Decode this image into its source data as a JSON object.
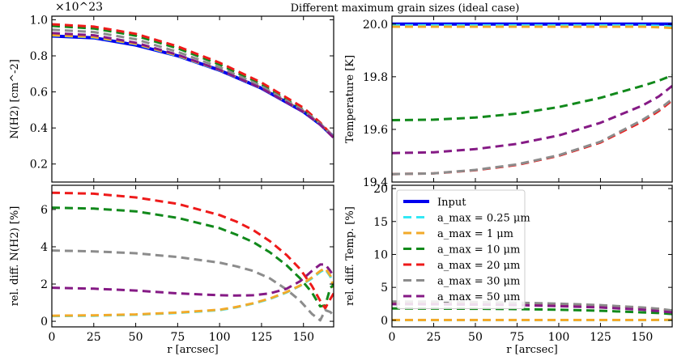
{
  "figure_title": "Different maximum grain sizes (ideal case)",
  "colors": {
    "Input": "#0000ee",
    "a025": "#33e8f5",
    "a1": "#f2aa2a",
    "a10": "#11891b",
    "a20": "#ee1a1a",
    "a30": "#8c8c8c",
    "a50": "#851a85"
  },
  "legend": {
    "placement": "upper-left",
    "entries": [
      {
        "key": "Input",
        "label": "Input"
      },
      {
        "key": "a025",
        "label": "a_max = 0.25 μm"
      },
      {
        "key": "a1",
        "label": "a_max = 1 μm"
      },
      {
        "key": "a10",
        "label": "a_max = 10 μm"
      },
      {
        "key": "a20",
        "label": "a_max = 20 μm"
      },
      {
        "key": "a30",
        "label": "a_max = 30 μm"
      },
      {
        "key": "a50",
        "label": "a_max = 50 μm"
      }
    ]
  },
  "chart_data": [
    {
      "id": "nh2",
      "type": "line",
      "xlabel": "",
      "ylabel": "N(H2) [cm^-2]",
      "scale_note": "×10^23",
      "xlim": [
        0,
        168
      ],
      "ylim": [
        0.1,
        1.02
      ],
      "xticks": [
        0,
        25,
        50,
        75,
        100,
        125,
        150
      ],
      "yticks": [
        0.2,
        0.4,
        0.6,
        0.8,
        1.0
      ],
      "ytick_labels": [
        "0.2",
        "0.4",
        "0.6",
        "0.8",
        "1.0"
      ],
      "x": [
        0,
        25,
        50,
        75,
        100,
        125,
        150,
        160,
        168
      ],
      "series": [
        {
          "key": "Input",
          "style": "solid",
          "values": [
            0.91,
            0.9,
            0.86,
            0.8,
            0.72,
            0.62,
            0.49,
            0.42,
            0.35
          ]
        },
        {
          "key": "a025",
          "style": "dashed",
          "values": [
            0.913,
            0.903,
            0.865,
            0.8,
            0.72,
            0.62,
            0.49,
            0.42,
            0.35
          ]
        },
        {
          "key": "a1",
          "style": "dashed",
          "values": [
            0.915,
            0.905,
            0.867,
            0.802,
            0.722,
            0.622,
            0.492,
            0.422,
            0.35
          ]
        },
        {
          "key": "a10",
          "style": "dashed",
          "values": [
            0.966,
            0.952,
            0.912,
            0.842,
            0.752,
            0.642,
            0.502,
            0.425,
            0.35
          ]
        },
        {
          "key": "a20",
          "style": "dashed",
          "values": [
            0.975,
            0.962,
            0.922,
            0.852,
            0.762,
            0.652,
            0.512,
            0.43,
            0.35
          ]
        },
        {
          "key": "a30",
          "style": "dashed",
          "values": [
            0.945,
            0.932,
            0.892,
            0.822,
            0.737,
            0.632,
            0.497,
            0.423,
            0.35
          ]
        },
        {
          "key": "a50",
          "style": "dashed",
          "values": [
            0.926,
            0.914,
            0.873,
            0.806,
            0.722,
            0.62,
            0.489,
            0.418,
            0.345
          ]
        }
      ]
    },
    {
      "id": "temp",
      "type": "line",
      "xlabel": "",
      "ylabel": "Temperature [K]",
      "xlim": [
        0,
        168
      ],
      "ylim": [
        19.4,
        20.03
      ],
      "xticks": [
        0,
        25,
        50,
        75,
        100,
        125,
        150
      ],
      "yticks": [
        19.4,
        19.6,
        19.8,
        20.0
      ],
      "ytick_labels": [
        "19.4",
        "19.6",
        "19.8",
        "20.0"
      ],
      "x": [
        0,
        25,
        50,
        75,
        100,
        125,
        150,
        160,
        168
      ],
      "series": [
        {
          "key": "Input",
          "style": "solid",
          "values": [
            20.0,
            20.0,
            20.0,
            20.0,
            20.0,
            20.0,
            20.0,
            20.0,
            20.0
          ]
        },
        {
          "key": "a025",
          "style": "dashed",
          "values": [
            19.995,
            19.995,
            19.995,
            19.995,
            19.995,
            19.995,
            19.995,
            19.993,
            19.99
          ]
        },
        {
          "key": "a1",
          "style": "dashed",
          "values": [
            19.99,
            19.99,
            19.99,
            19.99,
            19.99,
            19.99,
            19.99,
            19.988,
            19.985
          ]
        },
        {
          "key": "a10",
          "style": "dashed",
          "values": [
            19.635,
            19.637,
            19.645,
            19.66,
            19.685,
            19.72,
            19.765,
            19.785,
            19.805
          ]
        },
        {
          "key": "a20",
          "style": "dashed",
          "values": [
            19.43,
            19.433,
            19.445,
            19.465,
            19.5,
            19.55,
            19.63,
            19.67,
            19.71
          ]
        },
        {
          "key": "a30",
          "style": "dashed",
          "values": [
            19.43,
            19.433,
            19.446,
            19.467,
            19.502,
            19.553,
            19.635,
            19.675,
            19.715
          ]
        },
        {
          "key": "a50",
          "style": "dashed",
          "values": [
            19.51,
            19.513,
            19.525,
            19.545,
            19.577,
            19.625,
            19.69,
            19.725,
            19.765
          ]
        }
      ]
    },
    {
      "id": "reldiff_nh2",
      "type": "line",
      "xlabel": "r [arcsec]",
      "ylabel": "rel. diff. N(H2) [%]",
      "xlim": [
        0,
        168
      ],
      "ylim": [
        -0.3,
        7.3
      ],
      "xticks": [
        0,
        25,
        50,
        75,
        100,
        125,
        150
      ],
      "xtick_labels": [
        "0",
        "25",
        "50",
        "75",
        "100",
        "125",
        "150"
      ],
      "yticks": [
        0,
        2,
        4,
        6
      ],
      "ytick_labels": [
        "0",
        "2",
        "4",
        "6"
      ],
      "x": [
        0,
        25,
        50,
        75,
        100,
        110,
        120,
        130,
        140,
        148,
        155,
        160,
        163,
        166,
        168
      ],
      "series": [
        {
          "key": "a025",
          "style": "dashed",
          "values": [
            0.28,
            0.3,
            0.35,
            0.45,
            0.6,
            0.75,
            0.95,
            1.2,
            1.55,
            1.9,
            2.3,
            2.65,
            2.8,
            2.4,
            1.8
          ]
        },
        {
          "key": "a1",
          "style": "dashed",
          "values": [
            0.3,
            0.32,
            0.37,
            0.47,
            0.62,
            0.77,
            0.97,
            1.22,
            1.57,
            1.92,
            2.35,
            2.7,
            2.85,
            2.45,
            1.8
          ]
        },
        {
          "key": "a10",
          "style": "dashed",
          "values": [
            6.1,
            6.05,
            5.9,
            5.55,
            5.0,
            4.65,
            4.25,
            3.7,
            3.0,
            2.3,
            1.55,
            0.8,
            0.85,
            1.8,
            1.95
          ]
        },
        {
          "key": "a20",
          "style": "dashed",
          "values": [
            6.9,
            6.85,
            6.65,
            6.3,
            5.7,
            5.35,
            4.9,
            4.3,
            3.55,
            2.8,
            1.9,
            1.1,
            0.7,
            1.2,
            1.5
          ]
        },
        {
          "key": "a30",
          "style": "dashed",
          "values": [
            3.8,
            3.75,
            3.65,
            3.45,
            3.15,
            2.95,
            2.7,
            2.3,
            1.7,
            1.1,
            0.4,
            0.05,
            0.6,
            0.5,
            0.3
          ]
        },
        {
          "key": "a50",
          "style": "dashed",
          "values": [
            1.8,
            1.75,
            1.65,
            1.5,
            1.4,
            1.38,
            1.4,
            1.5,
            1.75,
            2.15,
            2.7,
            3.05,
            3.05,
            2.7,
            2.4
          ]
        }
      ]
    },
    {
      "id": "reldiff_temp",
      "type": "line",
      "xlabel": "r [arcsec]",
      "ylabel": "rel. diff. Temp. [%]",
      "xlim": [
        0,
        168
      ],
      "ylim": [
        -1,
        20.5
      ],
      "xticks": [
        0,
        25,
        50,
        75,
        100,
        125,
        150
      ],
      "xtick_labels": [
        "0",
        "25",
        "50",
        "75",
        "100",
        "125",
        "150"
      ],
      "yticks": [
        0,
        5,
        10,
        15,
        20
      ],
      "ytick_labels": [
        "0",
        "5",
        "10",
        "15",
        "20"
      ],
      "x": [
        0,
        25,
        50,
        75,
        100,
        125,
        150,
        160,
        168
      ],
      "series": [
        {
          "key": "a025",
          "style": "dashed",
          "values": [
            0.03,
            0.03,
            0.03,
            0.03,
            0.03,
            0.03,
            0.03,
            0.04,
            0.05
          ]
        },
        {
          "key": "a1",
          "style": "dashed",
          "values": [
            0.05,
            0.05,
            0.05,
            0.05,
            0.05,
            0.05,
            0.05,
            0.06,
            0.08
          ]
        },
        {
          "key": "a10",
          "style": "dashed",
          "values": [
            1.8,
            1.78,
            1.75,
            1.7,
            1.6,
            1.45,
            1.2,
            1.1,
            0.95
          ]
        },
        {
          "key": "a20",
          "style": "dashed",
          "values": [
            2.8,
            2.78,
            2.72,
            2.62,
            2.48,
            2.25,
            1.9,
            1.7,
            1.45
          ]
        },
        {
          "key": "a30",
          "style": "dashed",
          "values": [
            2.85,
            2.83,
            2.77,
            2.67,
            2.52,
            2.3,
            1.95,
            1.75,
            1.5
          ]
        },
        {
          "key": "a50",
          "style": "dashed",
          "values": [
            2.45,
            2.43,
            2.38,
            2.3,
            2.15,
            1.95,
            1.6,
            1.4,
            1.2
          ]
        }
      ]
    }
  ]
}
